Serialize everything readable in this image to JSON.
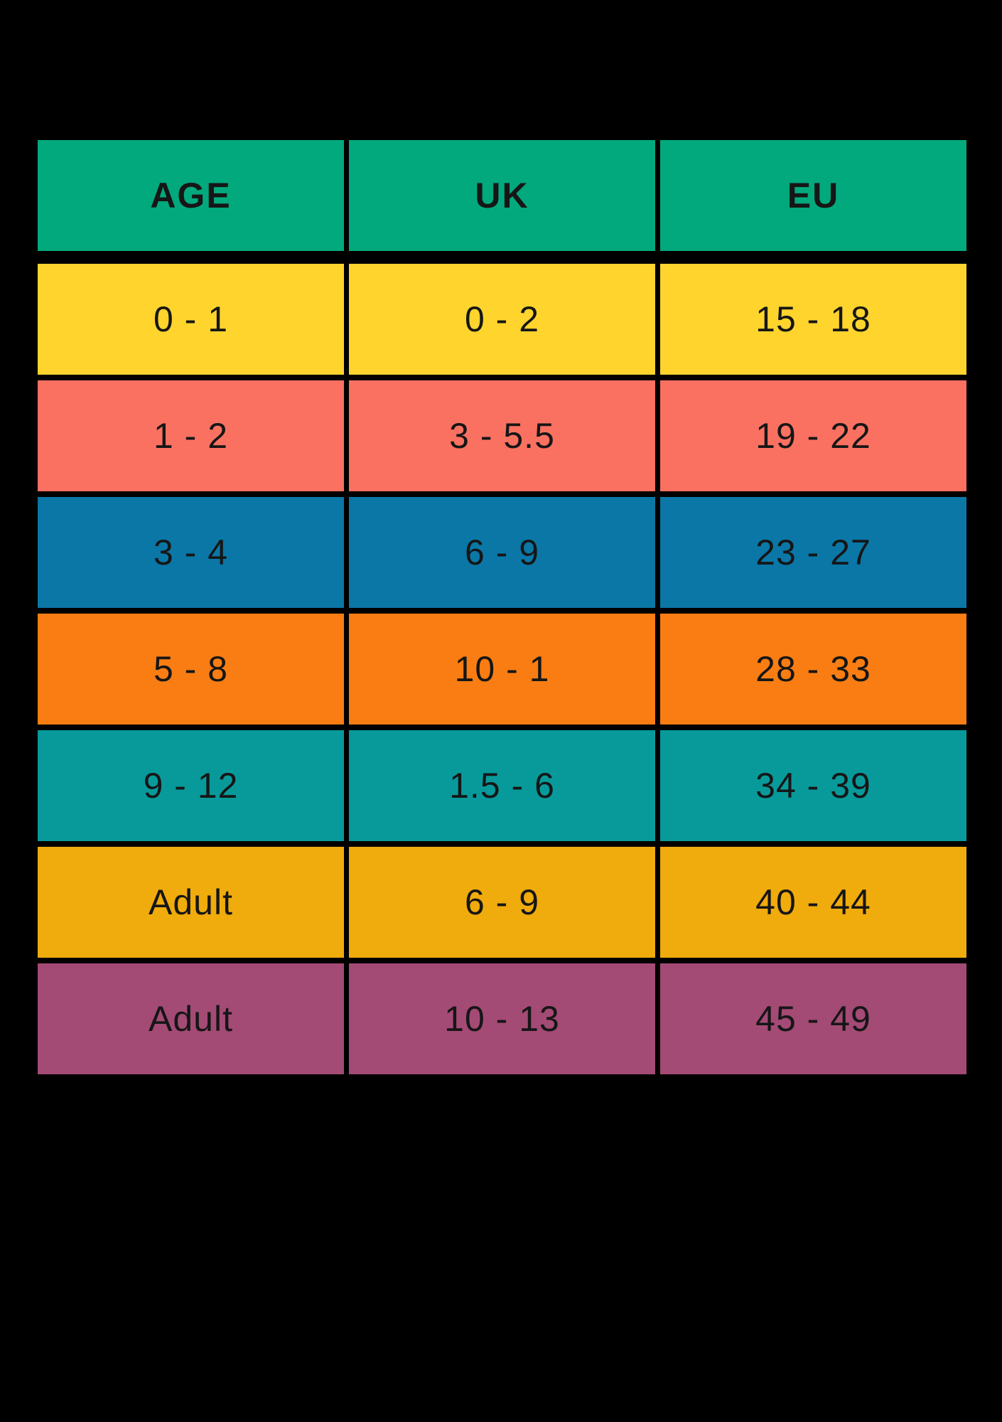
{
  "page": {
    "background_color": "#000000",
    "text_color": "#161616"
  },
  "table": {
    "header_color": "#02a97d",
    "columns": [
      "AGE",
      "UK",
      "EU"
    ],
    "rows": [
      {
        "color": "#ffd42d",
        "age": "0 - 1",
        "uk": "0 - 2",
        "eu": "15 - 18"
      },
      {
        "color": "#fa7161",
        "age": "1 - 2",
        "uk": "3 - 5.5",
        "eu": "19 - 22"
      },
      {
        "color": "#0a77a7",
        "age": "3 - 4",
        "uk": "6 - 9",
        "eu": "23 - 27"
      },
      {
        "color": "#f97d12",
        "age": "5 - 8",
        "uk": "10 - 1",
        "eu": "28 - 33"
      },
      {
        "color": "#089a9b",
        "age": "9 - 12",
        "uk": "1.5 - 6",
        "eu": "34 - 39"
      },
      {
        "color": "#f0ab0c",
        "age": "Adult",
        "uk": "6 - 9",
        "eu": "40 - 44"
      },
      {
        "color": "#a34a75",
        "age": "Adult",
        "uk": "10 - 13",
        "eu": "45 - 49"
      }
    ]
  },
  "chart_data": {
    "type": "table",
    "title": "",
    "columns": [
      "AGE",
      "UK",
      "EU"
    ],
    "rows": [
      [
        "0 - 1",
        "0 - 2",
        "15 - 18"
      ],
      [
        "1 - 2",
        "3 - 5.5",
        "19 - 22"
      ],
      [
        "3 - 4",
        "6 - 9",
        "23 - 27"
      ],
      [
        "5 - 8",
        "10 - 1",
        "28 - 33"
      ],
      [
        "9 - 12",
        "1.5 - 6",
        "34 - 39"
      ],
      [
        "Adult",
        "6 - 9",
        "40 - 44"
      ],
      [
        "Adult",
        "10 - 13",
        "45 - 49"
      ]
    ],
    "row_colors": [
      "#ffd42d",
      "#fa7161",
      "#0a77a7",
      "#f97d12",
      "#089a9b",
      "#f0ab0c",
      "#a34a75"
    ],
    "header_color": "#02a97d",
    "legend_position": "none",
    "grid": true
  }
}
